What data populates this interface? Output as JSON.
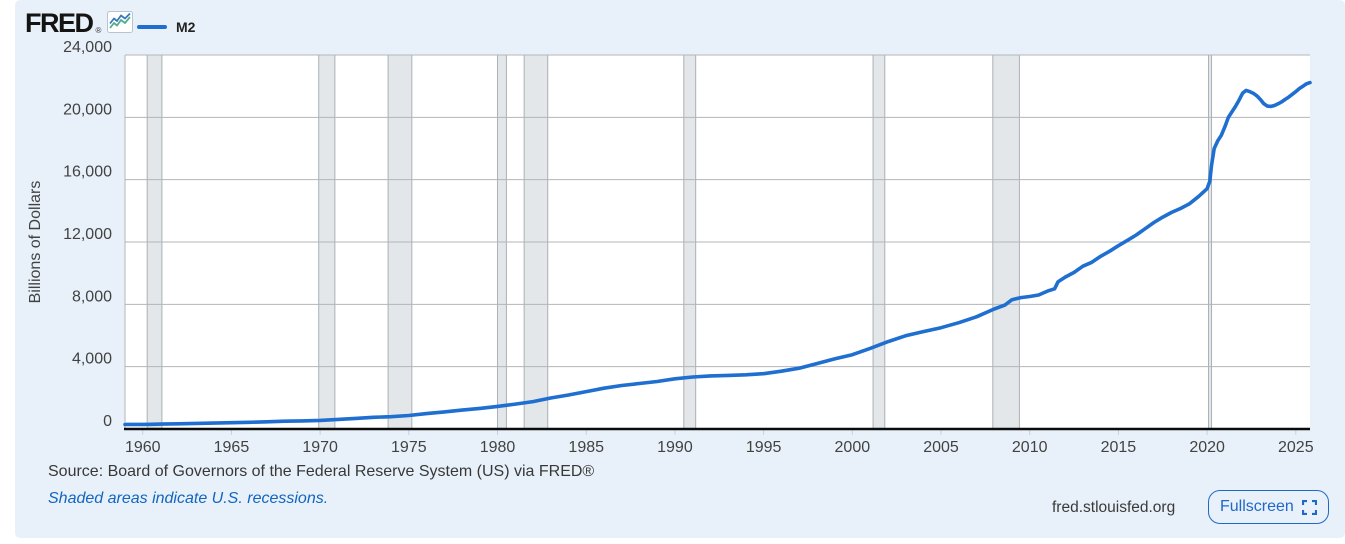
{
  "header": {
    "logo_text": "FRED",
    "logo_registered": "®",
    "legend": {
      "series_label": "M2"
    }
  },
  "icons": {
    "fred_sparkline_icon": "small boxed chart with blue and green zigzag lines",
    "fullscreen_expand_icon": "four corner brackets"
  },
  "colors": {
    "card_background": "#e8f1f9",
    "accent_blue": "#1e6fd0",
    "link_blue": "#1265c1",
    "axis_text": "#424242",
    "gridline": "#b3b6b9",
    "recession_fill": "#e3e7ea",
    "recession_edge": "#aab0b5",
    "axis_line": "#0b0b0b"
  },
  "chart_data": {
    "type": "line",
    "title": "M2",
    "ylabel": "Billions of Dollars",
    "xlabel": "",
    "xlim": [
      1959.0,
      2025.8
    ],
    "ylim": [
      0,
      24000
    ],
    "grid": "horizontal",
    "legend_position": "top-left",
    "y_ticks": [
      0,
      4000,
      8000,
      12000,
      16000,
      20000,
      24000
    ],
    "y_tick_labels": [
      "0",
      "4,000",
      "8,000",
      "12,000",
      "16,000",
      "20,000",
      "24,000"
    ],
    "x_ticks": [
      1960,
      1965,
      1970,
      1975,
      1980,
      1985,
      1990,
      1995,
      2000,
      2005,
      2010,
      2015,
      2020,
      2025
    ],
    "gridline_color": "#b3b6b9",
    "recession_fill": "#e3e7ea",
    "recession_edge": "#aab0b5",
    "recessions": [
      [
        1960.25,
        1961.08
      ],
      [
        1969.92,
        1970.83
      ],
      [
        1973.83,
        1975.17
      ],
      [
        1980.0,
        1980.5
      ],
      [
        1981.5,
        1982.83
      ],
      [
        1990.5,
        1991.17
      ],
      [
        2001.17,
        2001.83
      ],
      [
        2007.92,
        2009.42
      ],
      [
        2020.08,
        2020.25
      ]
    ],
    "series": [
      {
        "name": "M2",
        "color": "#1e6fd0",
        "units": "Billions of Dollars",
        "points": [
          [
            1959.0,
            287
          ],
          [
            1959.5,
            292
          ],
          [
            1960,
            298
          ],
          [
            1960.5,
            301
          ],
          [
            1961,
            312
          ],
          [
            1962,
            335
          ],
          [
            1963,
            357
          ],
          [
            1964,
            381
          ],
          [
            1965,
            407
          ],
          [
            1966,
            432
          ],
          [
            1967,
            463
          ],
          [
            1968,
            500
          ],
          [
            1969,
            520
          ],
          [
            1970,
            550
          ],
          [
            1971,
            616
          ],
          [
            1972,
            683
          ],
          [
            1973,
            750
          ],
          [
            1974,
            792
          ],
          [
            1975,
            866
          ],
          [
            1976,
            990
          ],
          [
            1977,
            1100
          ],
          [
            1978,
            1210
          ],
          [
            1979,
            1320
          ],
          [
            1980,
            1450
          ],
          [
            1981,
            1600
          ],
          [
            1982,
            1760
          ],
          [
            1983,
            1990
          ],
          [
            1984,
            2180
          ],
          [
            1985,
            2400
          ],
          [
            1986,
            2620
          ],
          [
            1987,
            2790
          ],
          [
            1988,
            2920
          ],
          [
            1989,
            3050
          ],
          [
            1990,
            3220
          ],
          [
            1991,
            3340
          ],
          [
            1992,
            3410
          ],
          [
            1993,
            3440
          ],
          [
            1994,
            3480
          ],
          [
            1995,
            3550
          ],
          [
            1996,
            3710
          ],
          [
            1997,
            3900
          ],
          [
            1998,
            4200
          ],
          [
            1999,
            4500
          ],
          [
            2000,
            4770
          ],
          [
            2001,
            5170
          ],
          [
            2002,
            5600
          ],
          [
            2003,
            5980
          ],
          [
            2004,
            6250
          ],
          [
            2005,
            6500
          ],
          [
            2006,
            6820
          ],
          [
            2007,
            7200
          ],
          [
            2008,
            7700
          ],
          [
            2008.6,
            7950
          ],
          [
            2009,
            8300
          ],
          [
            2009.5,
            8430
          ],
          [
            2010,
            8500
          ],
          [
            2010.5,
            8600
          ],
          [
            2011,
            8850
          ],
          [
            2011.4,
            9000
          ],
          [
            2011.6,
            9450
          ],
          [
            2012,
            9750
          ],
          [
            2012.5,
            10050
          ],
          [
            2013,
            10450
          ],
          [
            2013.5,
            10700
          ],
          [
            2014,
            11080
          ],
          [
            2014.5,
            11400
          ],
          [
            2015,
            11760
          ],
          [
            2015.5,
            12100
          ],
          [
            2016,
            12450
          ],
          [
            2016.5,
            12850
          ],
          [
            2017,
            13250
          ],
          [
            2017.5,
            13600
          ],
          [
            2018,
            13900
          ],
          [
            2018.5,
            14150
          ],
          [
            2019,
            14450
          ],
          [
            2019.5,
            14900
          ],
          [
            2020.0,
            15420
          ],
          [
            2020.15,
            15900
          ],
          [
            2020.25,
            16900
          ],
          [
            2020.4,
            18000
          ],
          [
            2020.6,
            18500
          ],
          [
            2020.8,
            18850
          ],
          [
            2021.0,
            19400
          ],
          [
            2021.2,
            20000
          ],
          [
            2021.4,
            20350
          ],
          [
            2021.6,
            20700
          ],
          [
            2021.8,
            21100
          ],
          [
            2022.0,
            21550
          ],
          [
            2022.2,
            21730
          ],
          [
            2022.4,
            21650
          ],
          [
            2022.6,
            21550
          ],
          [
            2022.8,
            21380
          ],
          [
            2023.0,
            21150
          ],
          [
            2023.2,
            20870
          ],
          [
            2023.4,
            20720
          ],
          [
            2023.6,
            20700
          ],
          [
            2023.8,
            20760
          ],
          [
            2024.0,
            20870
          ],
          [
            2024.2,
            20990
          ],
          [
            2024.4,
            21150
          ],
          [
            2024.6,
            21300
          ],
          [
            2024.8,
            21480
          ],
          [
            2025.0,
            21650
          ],
          [
            2025.2,
            21850
          ],
          [
            2025.4,
            22000
          ],
          [
            2025.6,
            22150
          ],
          [
            2025.8,
            22230
          ]
        ]
      }
    ]
  },
  "footer": {
    "source_text": "Source: Board of Governors of the Federal Reserve System (US) via FRED®",
    "recession_note": "Shaded areas indicate U.S. recessions.",
    "site_link": "fred.stlouisfed.org",
    "fullscreen_label": "Fullscreen"
  }
}
